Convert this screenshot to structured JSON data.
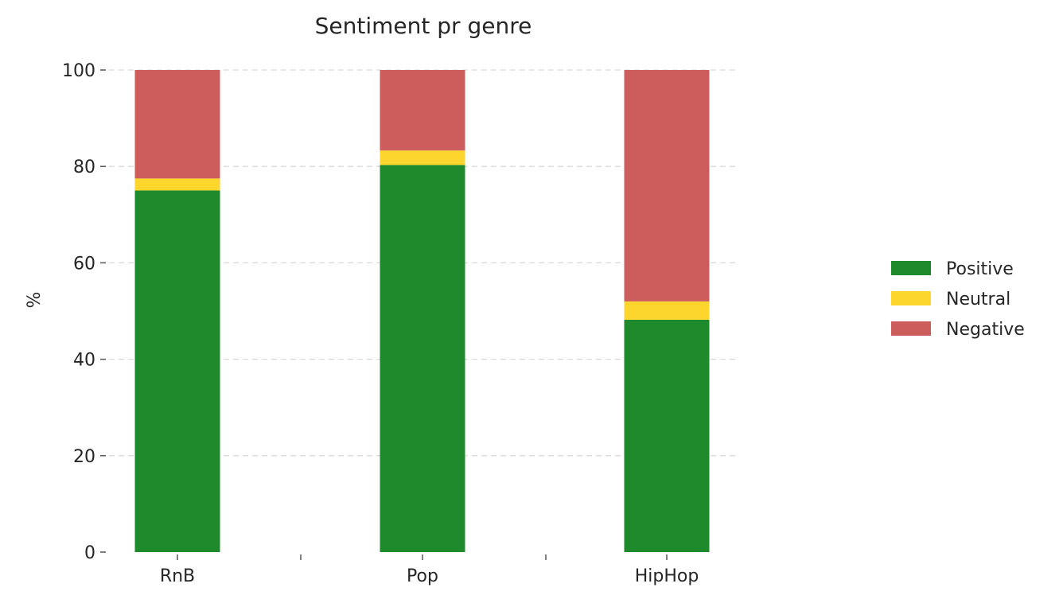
{
  "chart_data": {
    "type": "bar",
    "stacked": true,
    "title": "Sentiment pr genre",
    "xlabel": "",
    "ylabel": "%",
    "ylim": [
      0,
      100
    ],
    "yticks": [
      0,
      20,
      40,
      60,
      80,
      100
    ],
    "grid": "horizontal dashed",
    "legend_position": "right",
    "categories": [
      "RnB",
      "Pop",
      "HipHop"
    ],
    "series": [
      {
        "name": "Positive",
        "color": "#1e8a2c",
        "values": [
          75,
          80.3,
          48.2
        ]
      },
      {
        "name": "Neutral",
        "color": "#fdd62d",
        "values": [
          2.5,
          3.0,
          3.8
        ]
      },
      {
        "name": "Negative",
        "color": "#cd5c5c",
        "values": [
          22.5,
          16.7,
          48.0
        ]
      }
    ]
  }
}
